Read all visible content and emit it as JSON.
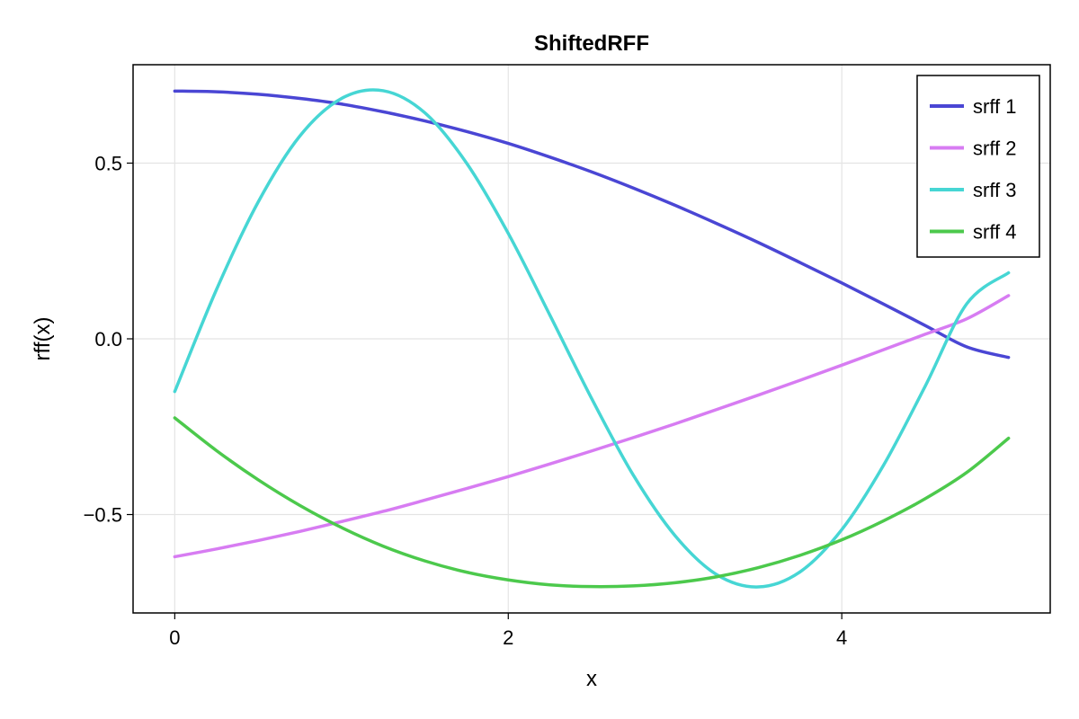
{
  "chart_data": {
    "type": "line",
    "title": "ShiftedRFF",
    "xlabel": "x",
    "ylabel": "rff(x)",
    "xlim": [
      -0.25,
      5.25
    ],
    "ylim": [
      -0.78,
      0.78
    ],
    "xticks": [
      {
        "value": 0,
        "label": "0"
      },
      {
        "value": 2,
        "label": "2"
      },
      {
        "value": 4,
        "label": "4"
      }
    ],
    "yticks": [
      {
        "value": 0.5,
        "label": "0.5"
      },
      {
        "value": 0.0,
        "label": "0.0"
      },
      {
        "value": -0.5,
        "label": "−0.5"
      }
    ],
    "grid": true,
    "legend_position": "top-right",
    "x": [
      0,
      0.25,
      0.5,
      0.75,
      1.0,
      1.25,
      1.5,
      1.75,
      2.0,
      2.25,
      2.5,
      2.75,
      3.0,
      3.25,
      3.5,
      3.75,
      4.0,
      4.25,
      4.5,
      4.75,
      5.0
    ],
    "series": [
      {
        "name": "srff 1",
        "color": "#4a46d4",
        "values": [
          0.705,
          0.703,
          0.696,
          0.684,
          0.668,
          0.646,
          0.62,
          0.59,
          0.556,
          0.517,
          0.475,
          0.429,
          0.38,
          0.328,
          0.274,
          0.217,
          0.159,
          0.099,
          0.038,
          -0.023,
          -0.053
        ]
      },
      {
        "name": "srff 2",
        "color": "#d77cf2",
        "values": [
          -0.62,
          -0.598,
          -0.574,
          -0.548,
          -0.52,
          -0.491,
          -0.459,
          -0.426,
          -0.392,
          -0.356,
          -0.319,
          -0.281,
          -0.242,
          -0.201,
          -0.16,
          -0.118,
          -0.075,
          -0.031,
          0.013,
          0.057,
          0.123
        ]
      },
      {
        "name": "srff 3",
        "color": "#46d6d4",
        "values": [
          -0.15,
          0.14,
          0.389,
          0.577,
          0.684,
          0.706,
          0.643,
          0.5,
          0.3,
          0.067,
          -0.17,
          -0.388,
          -0.56,
          -0.671,
          -0.706,
          -0.663,
          -0.543,
          -0.36,
          -0.135,
          0.1,
          0.188
        ]
      },
      {
        "name": "srff 4",
        "color": "#4cc94c",
        "values": [
          -0.225,
          -0.318,
          -0.401,
          -0.474,
          -0.537,
          -0.59,
          -0.632,
          -0.664,
          -0.686,
          -0.7,
          -0.705,
          -0.703,
          -0.694,
          -0.677,
          -0.651,
          -0.616,
          -0.572,
          -0.518,
          -0.455,
          -0.38,
          -0.283
        ]
      }
    ]
  }
}
